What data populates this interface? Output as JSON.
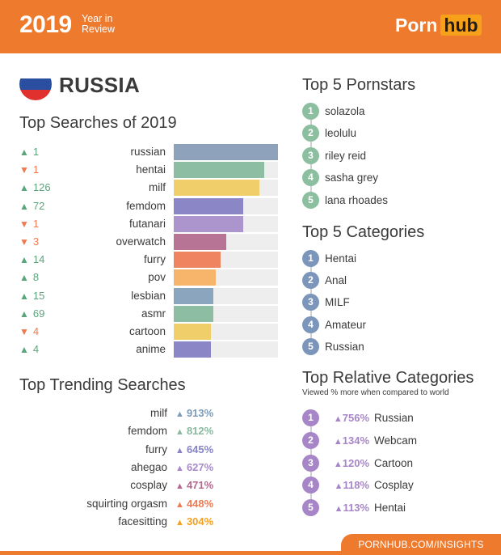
{
  "header": {
    "year": "2019",
    "year_in_review": "Year in\nReview",
    "logo_part1": "Porn",
    "logo_part2": "hub"
  },
  "country": "RUSSIA",
  "top_searches_title": "Top Searches of 2019",
  "chart_data": {
    "type": "bar",
    "title": "Top Searches of 2019",
    "categories": [
      "russian",
      "hentai",
      "milf",
      "femdom",
      "futanari",
      "overwatch",
      "furry",
      "pov",
      "lesbian",
      "asmr",
      "cartoon",
      "anime"
    ],
    "values": [
      100,
      87,
      82,
      67,
      67,
      50,
      45,
      40,
      38,
      38,
      36,
      36
    ],
    "rank_change": [
      "1",
      "1",
      "126",
      "72",
      "1",
      "3",
      "14",
      "8",
      "15",
      "69",
      "4",
      "4"
    ],
    "change_direction": [
      "up",
      "down",
      "up",
      "up",
      "down",
      "down",
      "up",
      "up",
      "up",
      "up",
      "down",
      "up"
    ],
    "colors": [
      "#8ea2bb",
      "#8dbea3",
      "#f0ce6a",
      "#8b87c7",
      "#ac95cc",
      "#b87495",
      "#ef8560",
      "#f6b56a",
      "#8ba5bf",
      "#8dbea3",
      "#f0ce6a",
      "#8b87c7"
    ]
  },
  "trending": {
    "title": "Top Trending Searches",
    "items": [
      {
        "term": "milf",
        "value": "913%",
        "color": "#7e9ab8"
      },
      {
        "term": "femdom",
        "value": "812%",
        "color": "#8ab9a0"
      },
      {
        "term": "furry",
        "value": "645%",
        "color": "#8783c4"
      },
      {
        "term": "ahegao",
        "value": "627%",
        "color": "#a78bc9"
      },
      {
        "term": "cosplay",
        "value": "471%",
        "color": "#b3698f"
      },
      {
        "term": "squirting orgasm",
        "value": "448%",
        "color": "#ec7b55"
      },
      {
        "term": "facesitting",
        "value": "304%",
        "color": "#f4a021"
      }
    ]
  },
  "pornstars": {
    "title": "Top 5 Pornstars",
    "color": "#8cbf9f",
    "items": [
      "solazola",
      "leolulu",
      "riley reid",
      "sasha grey",
      "lana rhoades"
    ]
  },
  "categories": {
    "title": "Top 5 Categories",
    "color": "#7b96ba",
    "items": [
      "Hentai",
      "Anal",
      "MILF",
      "Amateur",
      "Russian"
    ]
  },
  "relative": {
    "title": "Top Relative Categories",
    "subtitle": "Viewed % more when compared to world",
    "color": "#a786c8",
    "items": [
      {
        "pct": "756%",
        "label": "Russian"
      },
      {
        "pct": "134%",
        "label": "Webcam"
      },
      {
        "pct": "120%",
        "label": "Cartoon"
      },
      {
        "pct": "118%",
        "label": "Cosplay"
      },
      {
        "pct": "113%",
        "label": "Hentai"
      }
    ]
  },
  "footer": "PORNHUB.COM/INSIGHTS",
  "flag_colors": [
    "#ffffff",
    "#2a4fa0",
    "#e0312f"
  ]
}
